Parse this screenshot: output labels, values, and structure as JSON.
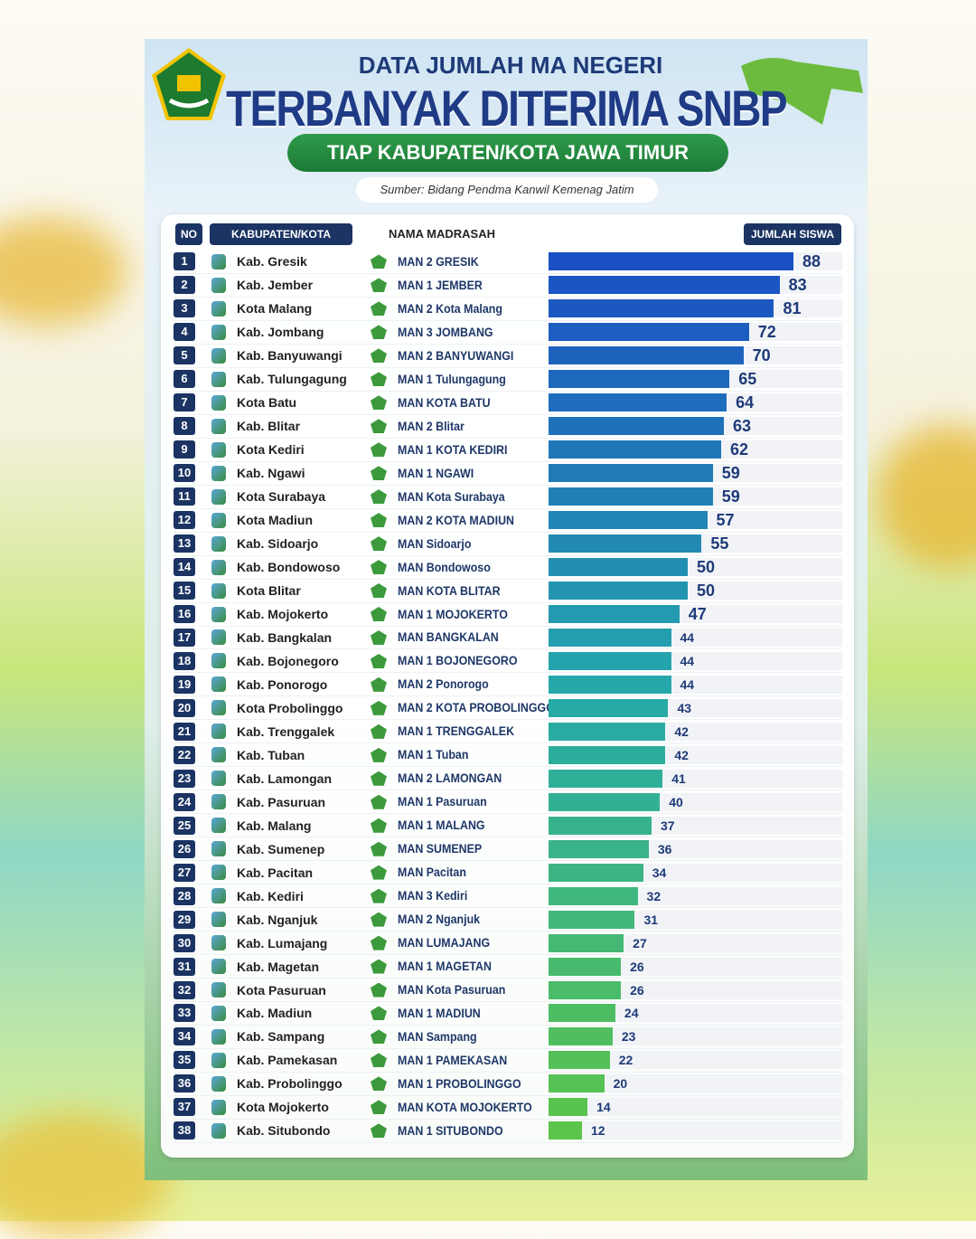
{
  "header": {
    "line1": "DATA JUMLAH MA NEGERI",
    "line2": "TERBANYAK DITERIMA SNBP",
    "line3": "TIAP KABUPATEN/KOTA JAWA TIMUR",
    "source": "Sumber: Bidang Pendma Kanwil Kemenag Jatim"
  },
  "colors": {
    "navy": "#1b3463",
    "green": "#1c7a36",
    "bar_top": "#1a4fc4",
    "bar_bottom": "#5cc44a"
  },
  "chart_data": {
    "type": "bar",
    "title": "TERBANYAK DITERIMA SNBP",
    "columns": [
      "NO",
      "KABUPATEN/KOTA",
      "NAMA MADRASAH",
      "JUMLAH SISWA"
    ],
    "categories": [
      "Kab. Gresik",
      "Kab. Jember",
      "Kota Malang",
      "Kab. Jombang",
      "Kab. Banyuwangi",
      "Kab. Tulungagung",
      "Kota Batu",
      "Kab. Blitar",
      "Kota Kediri",
      "Kab. Ngawi",
      "Kota Surabaya",
      "Kota Madiun",
      "Kab. Sidoarjo",
      "Kab. Bondowoso",
      "Kota Blitar",
      "Kab. Mojokerto",
      "Kab. Bangkalan",
      "Kab. Bojonegoro",
      "Kab. Ponorogo",
      "Kota Probolinggo",
      "Kab. Trenggalek",
      "Kab. Tuban",
      "Kab. Lamongan",
      "Kab. Pasuruan",
      "Kab. Malang",
      "Kab. Sumenep",
      "Kab. Pacitan",
      "Kab. Kediri",
      "Kab. Nganjuk",
      "Kab. Lumajang",
      "Kab. Magetan",
      "Kota Pasuruan",
      "Kab. Madiun",
      "Kab. Sampang",
      "Kab. Pamekasan",
      "Kab. Probolinggo",
      "Kota Mojokerto",
      "Kab. Situbondo"
    ],
    "madrasah": [
      "MAN 2 GRESIK",
      "MAN 1 JEMBER",
      "MAN 2 Kota Malang",
      "MAN 3 JOMBANG",
      "MAN 2 BANYUWANGI",
      "MAN 1 Tulungagung",
      "MAN KOTA BATU",
      "MAN 2 Blitar",
      "MAN 1 KOTA KEDIRI",
      "MAN 1 NGAWI",
      "MAN Kota Surabaya",
      "MAN 2 KOTA MADIUN",
      "MAN Sidoarjo",
      "MAN Bondowoso",
      "MAN KOTA BLITAR",
      "MAN 1 MOJOKERTO",
      "MAN BANGKALAN",
      "MAN 1 BOJONEGORO",
      "MAN 2 Ponorogo",
      "MAN 2 KOTA PROBOLINGGO",
      "MAN 1 TRENGGALEK",
      "MAN 1 Tuban",
      "MAN 2 LAMONGAN",
      "MAN 1 Pasuruan",
      "MAN 1 MALANG",
      "MAN SUMENEP",
      "MAN Pacitan",
      "MAN 3 Kediri",
      "MAN 2 Nganjuk",
      "MAN LUMAJANG",
      "MAN 1 MAGETAN",
      "MAN Kota Pasuruan",
      "MAN 1 MADIUN",
      "MAN Sampang",
      "MAN 1 PAMEKASAN",
      "MAN 1 PROBOLINGGO",
      "MAN KOTA MOJOKERTO",
      "MAN 1 SITUBONDO"
    ],
    "values": [
      88,
      83,
      81,
      72,
      70,
      65,
      64,
      63,
      62,
      59,
      59,
      57,
      55,
      50,
      50,
      47,
      44,
      44,
      44,
      43,
      42,
      42,
      41,
      40,
      37,
      36,
      34,
      32,
      31,
      27,
      26,
      26,
      24,
      23,
      22,
      20,
      14,
      12
    ],
    "xlim": [
      0,
      88
    ]
  }
}
